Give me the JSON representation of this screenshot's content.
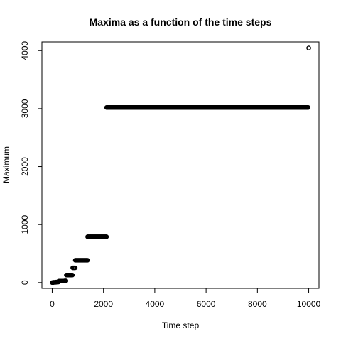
{
  "chart_data": {
    "type": "scatter",
    "title": "Maxima as a function of the time steps",
    "xlabel": "Time step",
    "ylabel": "Maximum",
    "xlim": [
      -400,
      10400
    ],
    "ylim": [
      -100,
      4150
    ],
    "xticks": [
      0,
      2000,
      4000,
      6000,
      8000,
      10000
    ],
    "yticks": [
      0,
      1000,
      2000,
      3000,
      4000
    ],
    "xtick_labels": [
      "0",
      "2000",
      "4000",
      "6000",
      "8000",
      "10000"
    ],
    "ytick_labels": [
      "0",
      "1000",
      "2000",
      "3000",
      "4000"
    ],
    "grid": false,
    "marker": "open-circle",
    "point_color": "#000000",
    "series": [
      {
        "segments": [
          {
            "x_start": 0,
            "x_end": 50,
            "y": 0
          },
          {
            "x_start": 50,
            "x_end": 150,
            "y": 5
          },
          {
            "x_start": 150,
            "x_end": 250,
            "y": 10
          },
          {
            "x_start": 250,
            "x_end": 480,
            "y": 25
          },
          {
            "x_start": 480,
            "x_end": 550,
            "y": 30
          },
          {
            "x_start": 550,
            "x_end": 800,
            "y": 130
          },
          {
            "x_start": 800,
            "x_end": 900,
            "y": 255
          },
          {
            "x_start": 900,
            "x_end": 1380,
            "y": 385
          },
          {
            "x_start": 1380,
            "x_end": 2120,
            "y": 790
          },
          {
            "x_start": 2120,
            "x_end": 9990,
            "y": 3020
          }
        ],
        "isolated_points": [
          {
            "x": 10000,
            "y": 4045
          }
        ]
      }
    ]
  }
}
